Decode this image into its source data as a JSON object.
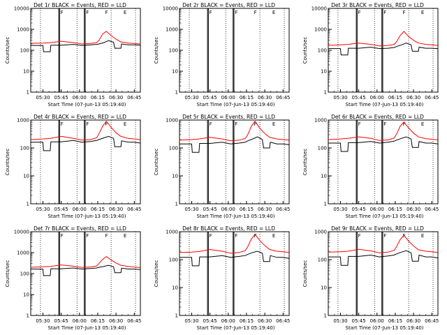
{
  "figure": {
    "start_time_label": "Start Time (07-Jun-13 05:19:40)",
    "ylabel": "Counts/sec",
    "xtick_labels": [
      "05:30",
      "05:45",
      "06:00",
      "06:15",
      "06:30",
      "06:45"
    ],
    "ytick_labels_full": [
      "10000",
      "1000",
      "100",
      "10",
      "1"
    ],
    "ytick_labels_short": [
      "1000",
      "100",
      "10",
      "1"
    ]
  },
  "chart_data": [
    {
      "type": "line",
      "title": "Det 1r  BLACK = Events, RED = LLD",
      "xlabel": "Start Time (07-Jun-13 05:19:40)",
      "ylabel": "Counts/sec",
      "xlim_min": [
        0,
        90
      ],
      "ylim": [
        1,
        10000
      ],
      "marker_labels": [
        "F",
        "F",
        "F",
        "E"
      ],
      "marker_times": [
        23,
        23.7,
        44,
        44.7
      ],
      "series": [
        {
          "name": "Events",
          "color": "#000000",
          "x": [
            0,
            10,
            10.5,
            16,
            16.5,
            25,
            35,
            42,
            49,
            54,
            56,
            60,
            64,
            68,
            69,
            74,
            74.5,
            80,
            85,
            90
          ],
          "y": [
            170,
            170,
            85,
            85,
            175,
            175,
            190,
            170,
            180,
            190,
            200,
            230,
            290,
            240,
            125,
            125,
            200,
            180,
            180,
            175
          ]
        },
        {
          "name": "LLD",
          "color": "#ff0000",
          "x": [
            0,
            10,
            16,
            25,
            35,
            42,
            49,
            54,
            56,
            59,
            62,
            66,
            70,
            74,
            80,
            85,
            90
          ],
          "y": [
            215,
            220,
            230,
            270,
            230,
            200,
            210,
            230,
            300,
            600,
            800,
            500,
            340,
            250,
            220,
            210,
            200
          ]
        }
      ]
    },
    {
      "type": "line",
      "title": "Det 2r  BLACK = Events, RED = LLD",
      "xlabel": "Start Time (07-Jun-13 05:19:40)",
      "ylabel": "Counts/sec",
      "xlim_min": [
        0,
        90
      ],
      "ylim": [
        1,
        10000
      ],
      "marker_labels": [
        "F",
        "F",
        "F",
        "E"
      ],
      "marker_times": [
        23,
        23.7,
        44,
        44.7
      ],
      "series": []
    },
    {
      "type": "line",
      "title": "Det 3r  BLACK = Events, RED = LLD",
      "xlabel": "Start Time (07-Jun-13 05:19:40)",
      "ylabel": "Counts/sec",
      "xlim_min": [
        0,
        90
      ],
      "ylim": [
        1,
        10000
      ],
      "marker_labels": [
        "F",
        "F",
        "F",
        "E"
      ],
      "marker_times": [
        23,
        23.7,
        44,
        44.7
      ],
      "series": [
        {
          "name": "Events",
          "color": "#000000",
          "x": [
            0,
            10,
            10.5,
            16,
            16.5,
            25,
            35,
            42,
            49,
            54,
            56,
            60,
            64,
            68,
            69,
            74,
            74.5,
            80,
            85,
            90
          ],
          "y": [
            120,
            120,
            60,
            60,
            125,
            125,
            140,
            120,
            125,
            135,
            150,
            180,
            220,
            180,
            90,
            90,
            140,
            125,
            125,
            120
          ]
        },
        {
          "name": "LLD",
          "color": "#ff0000",
          "x": [
            0,
            10,
            16,
            25,
            35,
            42,
            49,
            54,
            56,
            59,
            62,
            66,
            70,
            74,
            80,
            85,
            90
          ],
          "y": [
            170,
            180,
            190,
            220,
            190,
            160,
            170,
            190,
            250,
            500,
            800,
            450,
            300,
            220,
            190,
            180,
            170
          ]
        }
      ]
    },
    {
      "type": "line",
      "title": "Det 4r  BLACK = Events, RED = LLD",
      "xlabel": "Start Time (07-Jun-13 05:19:40)",
      "ylabel": "Counts/sec",
      "xlim_min": [
        0,
        90
      ],
      "ylim": [
        1,
        1000
      ],
      "marker_labels": [
        "F",
        "F",
        "F",
        "E"
      ],
      "marker_times": [
        23,
        23.7,
        44,
        44.7
      ],
      "series": [
        {
          "name": "Events",
          "color": "#000000",
          "x": [
            0,
            10,
            10.5,
            16,
            16.5,
            25,
            35,
            42,
            49,
            54,
            56,
            60,
            64,
            68,
            69,
            74,
            74.5,
            80,
            85,
            90
          ],
          "y": [
            160,
            160,
            80,
            80,
            165,
            165,
            185,
            160,
            170,
            185,
            200,
            230,
            260,
            220,
            110,
            110,
            180,
            160,
            160,
            150
          ]
        },
        {
          "name": "LLD",
          "color": "#ff0000",
          "x": [
            0,
            10,
            16,
            25,
            35,
            42,
            49,
            54,
            56,
            59,
            62,
            66,
            70,
            74,
            80,
            85,
            90
          ],
          "y": [
            200,
            210,
            220,
            260,
            220,
            190,
            200,
            230,
            320,
            600,
            900,
            550,
            350,
            260,
            220,
            210,
            200
          ]
        }
      ]
    },
    {
      "type": "line",
      "title": "Det 5r  BLACK = Events, RED = LLD",
      "xlabel": "Start Time (07-Jun-13 05:19:40)",
      "ylabel": "Counts/sec",
      "xlim_min": [
        0,
        90
      ],
      "ylim": [
        1,
        1000
      ],
      "marker_labels": [
        "F",
        "F",
        "F",
        "E"
      ],
      "marker_times": [
        23,
        23.7,
        44,
        44.7
      ],
      "series": [
        {
          "name": "Events",
          "color": "#000000",
          "x": [
            0,
            10,
            10.5,
            16,
            16.5,
            25,
            35,
            42,
            49,
            54,
            56,
            60,
            64,
            68,
            69,
            74,
            74.5,
            80,
            85,
            90
          ],
          "y": [
            140,
            140,
            70,
            70,
            145,
            145,
            160,
            140,
            150,
            160,
            180,
            210,
            250,
            200,
            100,
            100,
            160,
            140,
            140,
            130
          ]
        },
        {
          "name": "LLD",
          "color": "#ff0000",
          "x": [
            0,
            10,
            16,
            25,
            35,
            42,
            49,
            54,
            56,
            59,
            62,
            66,
            70,
            74,
            80,
            85,
            90
          ],
          "y": [
            190,
            200,
            210,
            240,
            210,
            180,
            190,
            220,
            300,
            600,
            900,
            500,
            330,
            240,
            210,
            200,
            190
          ]
        }
      ]
    },
    {
      "type": "line",
      "title": "Det 6r  BLACK = Events, RED = LLD",
      "xlabel": "Start Time (07-Jun-13 05:19:40)",
      "ylabel": "Counts/sec",
      "xlim_min": [
        0,
        90
      ],
      "ylim": [
        1,
        1000
      ],
      "marker_labels": [
        "F",
        "F",
        "F",
        "E"
      ],
      "marker_times": [
        23,
        23.7,
        44,
        44.7
      ],
      "series": [
        {
          "name": "Events",
          "color": "#000000",
          "x": [
            0,
            10,
            10.5,
            16,
            16.5,
            25,
            35,
            42,
            49,
            54,
            56,
            60,
            64,
            68,
            69,
            74,
            74.5,
            80,
            85,
            90
          ],
          "y": [
            150,
            150,
            75,
            75,
            155,
            155,
            170,
            150,
            160,
            175,
            190,
            220,
            250,
            210,
            105,
            105,
            170,
            150,
            150,
            140
          ]
        },
        {
          "name": "LLD",
          "color": "#ff0000",
          "x": [
            0,
            10,
            16,
            25,
            35,
            42,
            49,
            54,
            56,
            59,
            62,
            66,
            70,
            74,
            80,
            85,
            90
          ],
          "y": [
            200,
            210,
            220,
            250,
            220,
            185,
            195,
            225,
            310,
            600,
            850,
            520,
            340,
            250,
            215,
            205,
            195
          ]
        }
      ]
    },
    {
      "type": "line",
      "title": "Det 7r  BLACK = Events, RED = LLD",
      "xlabel": "Start Time (07-Jun-13 05:19:40)",
      "ylabel": "Counts/sec",
      "xlim_min": [
        0,
        90
      ],
      "ylim": [
        1,
        10000
      ],
      "marker_labels": [
        "F",
        "F",
        "F",
        "E"
      ],
      "marker_times": [
        23,
        23.7,
        44,
        44.7
      ],
      "series": [
        {
          "name": "Events",
          "color": "#000000",
          "x": [
            0,
            10,
            10.5,
            16,
            16.5,
            25,
            35,
            42,
            49,
            54,
            56,
            60,
            64,
            68,
            69,
            74,
            74.5,
            80,
            85,
            90
          ],
          "y": [
            165,
            165,
            80,
            80,
            170,
            170,
            185,
            165,
            175,
            185,
            200,
            220,
            250,
            210,
            110,
            110,
            180,
            165,
            165,
            155
          ]
        },
        {
          "name": "LLD",
          "color": "#ff0000",
          "x": [
            0,
            10,
            16,
            25,
            35,
            42,
            49,
            54,
            56,
            59,
            62,
            66,
            70,
            74,
            80,
            85,
            90
          ],
          "y": [
            200,
            210,
            220,
            260,
            225,
            195,
            205,
            230,
            300,
            480,
            650,
            450,
            320,
            250,
            220,
            205,
            195
          ]
        }
      ]
    },
    {
      "type": "line",
      "title": "Det 8r  BLACK = Events, RED = LLD",
      "xlabel": "Start Time (07-Jun-13 05:19:40)",
      "ylabel": "Counts/sec",
      "xlim_min": [
        0,
        90
      ],
      "ylim": [
        1,
        1000
      ],
      "marker_labels": [
        "F",
        "F",
        "F",
        "E"
      ],
      "marker_times": [
        23,
        23.7,
        44,
        44.7
      ],
      "series": [
        {
          "name": "Events",
          "color": "#000000",
          "x": [
            0,
            10,
            10.5,
            16,
            16.5,
            25,
            35,
            42,
            49,
            54,
            56,
            60,
            64,
            68,
            69,
            74,
            74.5,
            80,
            85,
            90
          ],
          "y": [
            120,
            120,
            60,
            60,
            125,
            125,
            140,
            120,
            130,
            140,
            155,
            180,
            200,
            170,
            85,
            85,
            140,
            120,
            120,
            110
          ]
        },
        {
          "name": "LLD",
          "color": "#ff0000",
          "x": [
            0,
            10,
            16,
            25,
            35,
            42,
            49,
            54,
            56,
            59,
            62,
            66,
            70,
            74,
            80,
            85,
            90
          ],
          "y": [
            180,
            185,
            195,
            230,
            200,
            170,
            180,
            210,
            290,
            550,
            800,
            480,
            320,
            230,
            200,
            190,
            180
          ]
        }
      ]
    },
    {
      "type": "line",
      "title": "Det 9r  BLACK = Events, RED = LLD",
      "xlabel": "Start Time (07-Jun-13 05:19:40)",
      "ylabel": "Counts/sec",
      "xlim_min": [
        0,
        90
      ],
      "ylim": [
        1,
        1000
      ],
      "marker_labels": [
        "F",
        "F",
        "F",
        "E"
      ],
      "marker_times": [
        23,
        23.7,
        44,
        44.7
      ],
      "series": [
        {
          "name": "Events",
          "color": "#000000",
          "x": [
            0,
            10,
            10.5,
            16,
            16.5,
            25,
            35,
            42,
            49,
            54,
            56,
            60,
            64,
            68,
            69,
            74,
            74.5,
            80,
            85,
            90
          ],
          "y": [
            125,
            125,
            62,
            62,
            130,
            130,
            145,
            125,
            135,
            145,
            160,
            185,
            210,
            175,
            88,
            88,
            145,
            125,
            125,
            115
          ]
        },
        {
          "name": "LLD",
          "color": "#ff0000",
          "x": [
            0,
            10,
            16,
            25,
            35,
            42,
            49,
            54,
            56,
            59,
            62,
            66,
            70,
            74,
            80,
            85,
            90
          ],
          "y": [
            185,
            190,
            200,
            235,
            205,
            175,
            185,
            215,
            290,
            520,
            750,
            460,
            310,
            225,
            200,
            190,
            180
          ]
        }
      ]
    }
  ]
}
